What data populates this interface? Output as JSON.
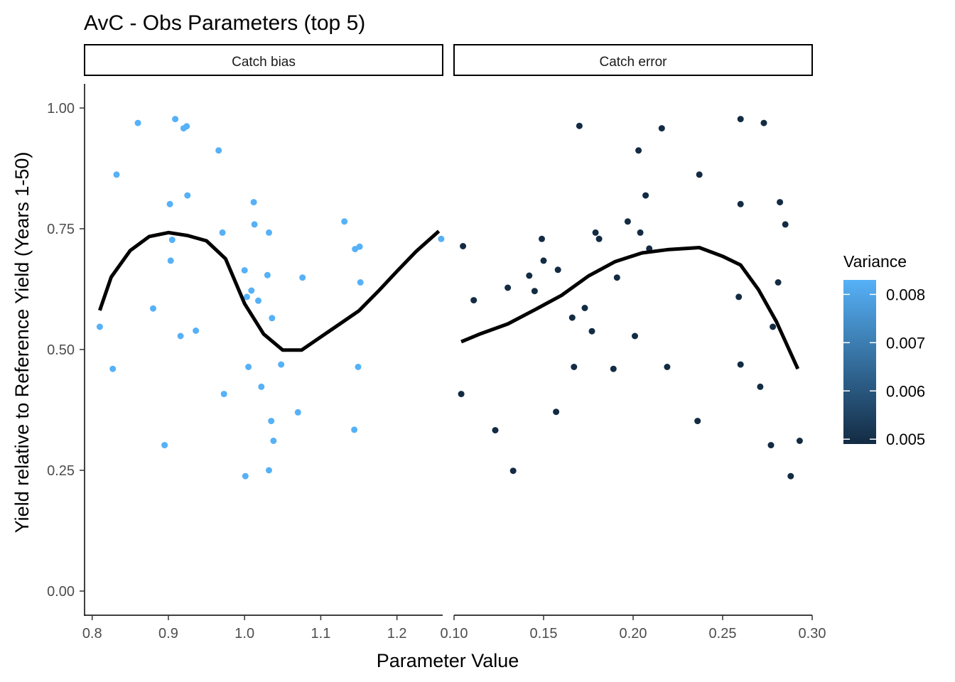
{
  "chart_data": {
    "type": "scatter",
    "title": "AvC - Obs Parameters (top 5)",
    "xlabel": "Parameter Value",
    "ylabel": "Yield relative to Reference Yield (Years 1-50)",
    "y_ticks": [
      "0.00",
      "0.25",
      "0.50",
      "0.75",
      "1.00"
    ],
    "y_tick_values": [
      0,
      0.25,
      0.5,
      0.75,
      1.0
    ],
    "ylim": [
      -0.05,
      1.05
    ],
    "grid": false,
    "legend": {
      "title": "Variance",
      "position": "right",
      "type": "colorbar",
      "range": [
        0.0049,
        0.0083
      ],
      "tick_values": [
        0.005,
        0.006,
        0.007,
        0.008
      ],
      "tick_labels": [
        "0.005",
        "0.006",
        "0.007",
        "0.008"
      ],
      "color_low": "#132B43",
      "color_high": "#56B1F7"
    },
    "panels": [
      {
        "strip": "Catch bias",
        "xlim": [
          0.79,
          1.26
        ],
        "x_ticks": [
          "0.8",
          "0.9",
          "1.0",
          "1.1",
          "1.2"
        ],
        "x_tick_values": [
          0.8,
          0.9,
          1.0,
          1.1,
          1.2
        ],
        "variance": 0.0083,
        "color": "#56B1F7",
        "points": [
          [
            0.81,
            0.547
          ],
          [
            0.827,
            0.46
          ],
          [
            0.832,
            0.862
          ],
          [
            0.86,
            0.969
          ],
          [
            0.88,
            0.585
          ],
          [
            0.895,
            0.302
          ],
          [
            0.902,
            0.801
          ],
          [
            0.903,
            0.684
          ],
          [
            0.905,
            0.727
          ],
          [
            0.909,
            0.977
          ],
          [
            0.916,
            0.528
          ],
          [
            0.92,
            0.958
          ],
          [
            0.924,
            0.962
          ],
          [
            0.925,
            0.819
          ],
          [
            0.936,
            0.539
          ],
          [
            0.966,
            0.912
          ],
          [
            0.971,
            0.742
          ],
          [
            0.973,
            0.408
          ],
          [
            1.0,
            0.664
          ],
          [
            1.001,
            0.238
          ],
          [
            1.003,
            0.609
          ],
          [
            1.005,
            0.464
          ],
          [
            1.009,
            0.622
          ],
          [
            1.012,
            0.805
          ],
          [
            1.013,
            0.759
          ],
          [
            1.018,
            0.601
          ],
          [
            1.022,
            0.423
          ],
          [
            1.03,
            0.654
          ],
          [
            1.032,
            0.742
          ],
          [
            1.032,
            0.25
          ],
          [
            1.035,
            0.352
          ],
          [
            1.036,
            0.565
          ],
          [
            1.038,
            0.311
          ],
          [
            1.048,
            0.469
          ],
          [
            1.07,
            0.37
          ],
          [
            1.076,
            0.649
          ],
          [
            1.131,
            0.765
          ],
          [
            1.144,
            0.334
          ],
          [
            1.145,
            0.708
          ],
          [
            1.149,
            0.464
          ],
          [
            1.151,
            0.713
          ],
          [
            1.152,
            0.639
          ],
          [
            1.258,
            0.729
          ]
        ],
        "smooth": [
          [
            0.81,
            0.581
          ],
          [
            0.825,
            0.65
          ],
          [
            0.85,
            0.705
          ],
          [
            0.875,
            0.734
          ],
          [
            0.9,
            0.742
          ],
          [
            0.925,
            0.736
          ],
          [
            0.95,
            0.725
          ],
          [
            0.975,
            0.688
          ],
          [
            1.0,
            0.595
          ],
          [
            1.025,
            0.532
          ],
          [
            1.05,
            0.499
          ],
          [
            1.075,
            0.499
          ],
          [
            1.1,
            0.526
          ],
          [
            1.125,
            0.553
          ],
          [
            1.15,
            0.58
          ],
          [
            1.175,
            0.62
          ],
          [
            1.2,
            0.662
          ],
          [
            1.225,
            0.703
          ],
          [
            1.255,
            0.745
          ]
        ]
      },
      {
        "strip": "Catch error",
        "xlim": [
          0.1,
          0.3
        ],
        "x_ticks": [
          "0.10",
          "0.15",
          "0.20",
          "0.25",
          "0.30"
        ],
        "x_tick_values": [
          0.1,
          0.15,
          0.2,
          0.25,
          0.3
        ],
        "variance": 0.0049,
        "color": "#132B43",
        "points": [
          [
            0.104,
            0.408
          ],
          [
            0.105,
            0.714
          ],
          [
            0.111,
            0.602
          ],
          [
            0.123,
            0.333
          ],
          [
            0.13,
            0.628
          ],
          [
            0.133,
            0.249
          ],
          [
            0.142,
            0.653
          ],
          [
            0.145,
            0.621
          ],
          [
            0.149,
            0.729
          ],
          [
            0.15,
            0.684
          ],
          [
            0.157,
            0.371
          ],
          [
            0.158,
            0.665
          ],
          [
            0.166,
            0.566
          ],
          [
            0.167,
            0.464
          ],
          [
            0.17,
            0.963
          ],
          [
            0.173,
            0.586
          ],
          [
            0.177,
            0.538
          ],
          [
            0.179,
            0.742
          ],
          [
            0.181,
            0.729
          ],
          [
            0.189,
            0.46
          ],
          [
            0.191,
            0.649
          ],
          [
            0.197,
            0.765
          ],
          [
            0.201,
            0.528
          ],
          [
            0.203,
            0.912
          ],
          [
            0.204,
            0.742
          ],
          [
            0.207,
            0.819
          ],
          [
            0.209,
            0.709
          ],
          [
            0.216,
            0.958
          ],
          [
            0.219,
            0.464
          ],
          [
            0.236,
            0.352
          ],
          [
            0.237,
            0.862
          ],
          [
            0.259,
            0.609
          ],
          [
            0.26,
            0.977
          ],
          [
            0.26,
            0.801
          ],
          [
            0.26,
            0.469
          ],
          [
            0.271,
            0.423
          ],
          [
            0.273,
            0.969
          ],
          [
            0.277,
            0.302
          ],
          [
            0.278,
            0.547
          ],
          [
            0.281,
            0.639
          ],
          [
            0.282,
            0.805
          ],
          [
            0.285,
            0.759
          ],
          [
            0.288,
            0.238
          ],
          [
            0.293,
            0.311
          ]
        ],
        "smooth": [
          [
            0.104,
            0.516
          ],
          [
            0.115,
            0.533
          ],
          [
            0.13,
            0.553
          ],
          [
            0.145,
            0.582
          ],
          [
            0.16,
            0.612
          ],
          [
            0.175,
            0.652
          ],
          [
            0.19,
            0.682
          ],
          [
            0.205,
            0.7
          ],
          [
            0.22,
            0.707
          ],
          [
            0.237,
            0.711
          ],
          [
            0.25,
            0.693
          ],
          [
            0.26,
            0.675
          ],
          [
            0.27,
            0.624
          ],
          [
            0.28,
            0.558
          ],
          [
            0.292,
            0.46
          ]
        ]
      }
    ]
  }
}
